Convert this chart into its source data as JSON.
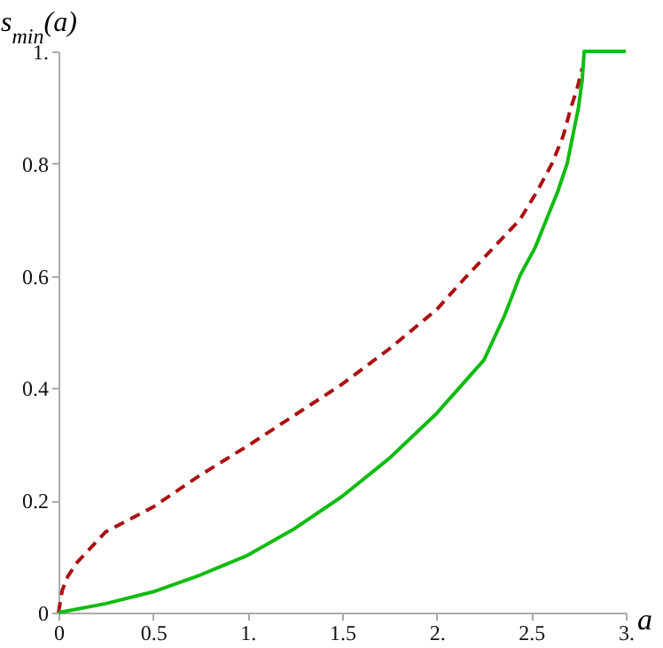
{
  "chart_data": {
    "type": "line",
    "xlabel": "a",
    "ylabel": "s$_{min}$(a)",
    "xlim": [
      0,
      3
    ],
    "ylim": [
      0,
      1
    ],
    "xticks": [
      0,
      0.5,
      {
        "value": 1,
        "label": "1."
      },
      1.5,
      {
        "value": 2,
        "label": "2."
      },
      2.5,
      {
        "value": 3,
        "label": "3."
      }
    ],
    "yticks": [
      0,
      0.2,
      0.4,
      0.6,
      0.8,
      {
        "value": 1,
        "label": "1."
      }
    ],
    "series": [
      {
        "color": "#aa1111",
        "line_style": "dashed",
        "x": [
          0,
          0.02,
          0.05,
          0.1,
          0.25,
          0.5,
          0.75,
          1,
          1.25,
          1.5,
          1.75,
          2,
          2.16,
          2.3,
          2.44,
          2.53,
          2.61,
          2.67,
          2.71,
          2.74,
          2.77
        ],
        "values": [
          0,
          0.04,
          0.065,
          0.09,
          0.144,
          0.188,
          0.245,
          0.297,
          0.352,
          0.407,
          0.47,
          0.54,
          0.6,
          0.65,
          0.7,
          0.75,
          0.8,
          0.85,
          0.9,
          0.93,
          0.97
        ]
      },
      {
        "color": "#11bb11",
        "line_style": "solid",
        "x": [
          0,
          0.25,
          0.5,
          0.75,
          1,
          1.25,
          1.5,
          1.75,
          2,
          2.25,
          2.36,
          2.44,
          2.52,
          2.58,
          2.64,
          2.69,
          2.72,
          2.75,
          2.77,
          2.78,
          3
        ],
        "values": [
          0,
          0.016,
          0.037,
          0.067,
          0.102,
          0.15,
          0.207,
          0.275,
          0.355,
          0.45,
          0.53,
          0.6,
          0.65,
          0.7,
          0.75,
          0.8,
          0.85,
          0.9,
          0.95,
          1,
          1
        ]
      }
    ]
  }
}
